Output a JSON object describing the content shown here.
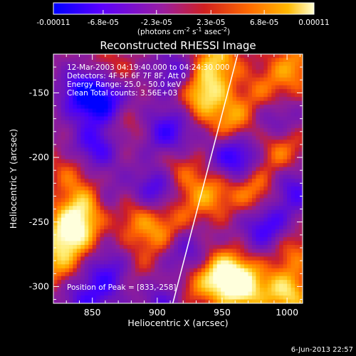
{
  "colorbar": {
    "tick_labels": [
      "-0.00011",
      "-6.8e-05",
      "-2.3e-05",
      "2.3e-05",
      "6.8e-05",
      "0.00011"
    ],
    "tick_values": [
      -0.00011,
      -6.8e-05,
      -2.3e-05,
      2.3e-05,
      6.8e-05,
      0.00011
    ],
    "min": -0.00011,
    "max": 0.00011,
    "units": "(photons cm",
    "units_exp1": "-2",
    "units_mid": " s",
    "units_exp2": "-1",
    "units_end": " asec",
    "units_exp3": "-2",
    "units_close": ")",
    "colors": [
      "#0000ff",
      "#6a00ff",
      "#9a1ea0",
      "#d02020",
      "#ff6a00",
      "#ffb800",
      "#ffffd0"
    ]
  },
  "chart_data": {
    "type": "heatmap",
    "title": "Reconstructed RHESSI Image",
    "xlabel": "Heliocentric X (arcsec)",
    "ylabel": "Heliocentric Y (arcsec)",
    "xlim": [
      820,
      1012
    ],
    "ylim": [
      -313,
      -120
    ],
    "x_ticks": [
      850,
      900,
      950,
      1000
    ],
    "y_ticks": [
      -300,
      -250,
      -200,
      -150
    ],
    "x_tick_labels": [
      "850",
      "900",
      "950",
      "1000"
    ],
    "y_tick_labels": [
      "-300",
      "-250",
      "-200",
      "-150"
    ],
    "annotations": [
      "12-Mar-2003 04:19:40.000 to 04:24:30.000",
      "Detectors: 4F 5F 6F 7F 8F, Att 0",
      "Energy Range: 25.0 - 50.0 keV",
      "Clean     Total counts: 3.56E+03"
    ],
    "peak_label": "Position of Peak = [833,-258]",
    "peak": [
      833,
      -258
    ],
    "limb_line": [
      [
        912,
        -313
      ],
      [
        962,
        -120
      ]
    ],
    "hot_spots": [
      {
        "x": 833,
        "y": -258,
        "v": 1.0
      },
      {
        "x": 845,
        "y": -238,
        "v": 0.75
      },
      {
        "x": 822,
        "y": -282,
        "v": 0.55
      },
      {
        "x": 833,
        "y": -210,
        "v": 0.35
      },
      {
        "x": 872,
        "y": -172,
        "v": 0.45
      },
      {
        "x": 862,
        "y": -133,
        "v": 0.3
      },
      {
        "x": 880,
        "y": -243,
        "v": 0.45
      },
      {
        "x": 900,
        "y": -260,
        "v": 0.5
      },
      {
        "x": 880,
        "y": -290,
        "v": 0.35
      },
      {
        "x": 915,
        "y": -210,
        "v": 0.4
      },
      {
        "x": 940,
        "y": -228,
        "v": 0.55
      },
      {
        "x": 935,
        "y": -150,
        "v": 0.85
      },
      {
        "x": 945,
        "y": -125,
        "v": 0.7
      },
      {
        "x": 958,
        "y": -172,
        "v": 0.6
      },
      {
        "x": 965,
        "y": -300,
        "v": 0.95
      },
      {
        "x": 950,
        "y": -290,
        "v": 0.85
      },
      {
        "x": 975,
        "y": -225,
        "v": 0.55
      },
      {
        "x": 1000,
        "y": -305,
        "v": 0.8
      },
      {
        "x": 1003,
        "y": -270,
        "v": 0.45
      },
      {
        "x": 995,
        "y": -195,
        "v": 0.5
      },
      {
        "x": 1005,
        "y": -130,
        "v": 0.55
      },
      {
        "x": 983,
        "y": -150,
        "v": 0.4
      },
      {
        "x": 925,
        "y": -300,
        "v": 0.4
      },
      {
        "x": 915,
        "y": -240,
        "v": 0.3
      }
    ],
    "cold_spots": [
      {
        "x": 845,
        "y": -150,
        "v": -0.95
      },
      {
        "x": 862,
        "y": -160,
        "v": -0.8
      },
      {
        "x": 852,
        "y": -192,
        "v": -0.7
      },
      {
        "x": 900,
        "y": -225,
        "v": -0.75
      },
      {
        "x": 908,
        "y": -180,
        "v": -0.7
      },
      {
        "x": 915,
        "y": -135,
        "v": -0.55
      },
      {
        "x": 960,
        "y": -200,
        "v": -0.85
      },
      {
        "x": 985,
        "y": -255,
        "v": -0.75
      },
      {
        "x": 1005,
        "y": -225,
        "v": -0.6
      },
      {
        "x": 865,
        "y": -290,
        "v": -0.7
      },
      {
        "x": 922,
        "y": -275,
        "v": -0.55
      },
      {
        "x": 845,
        "y": -310,
        "v": -0.55
      },
      {
        "x": 905,
        "y": -310,
        "v": -0.5
      },
      {
        "x": 990,
        "y": -170,
        "v": -0.45
      },
      {
        "x": 862,
        "y": -235,
        "v": -0.45
      }
    ]
  },
  "footer": {
    "timestamp": "6-Jun-2013 22:57"
  }
}
